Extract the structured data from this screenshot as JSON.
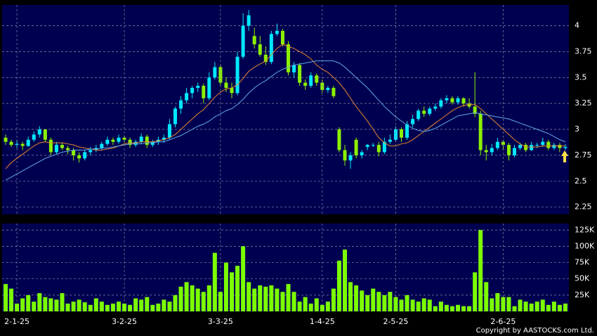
{
  "chart_data": [
    {
      "type": "candlestick",
      "ylim": [
        2.18,
        4.2
      ],
      "yticks": [
        2.25,
        2.5,
        2.75,
        3,
        3.25,
        3.5,
        3.75,
        4
      ],
      "up_color": "#00e8ff",
      "down_color": "#8cf000",
      "grid": true,
      "candles": [
        [
          2.92,
          2.95,
          2.85,
          2.88
        ],
        [
          2.88,
          2.9,
          2.83,
          2.85
        ],
        [
          2.85,
          2.9,
          2.82,
          2.86
        ],
        [
          2.86,
          2.88,
          2.8,
          2.84
        ],
        [
          2.84,
          2.93,
          2.83,
          2.9
        ],
        [
          2.9,
          2.98,
          2.88,
          2.95
        ],
        [
          2.95,
          3.03,
          2.92,
          3.0
        ],
        [
          3.0,
          3.0,
          2.88,
          2.9
        ],
        [
          2.9,
          2.92,
          2.75,
          2.78
        ],
        [
          2.78,
          2.88,
          2.76,
          2.85
        ],
        [
          2.85,
          2.87,
          2.8,
          2.82
        ],
        [
          2.82,
          2.84,
          2.76,
          2.8
        ],
        [
          2.8,
          2.82,
          2.7,
          2.75
        ],
        [
          2.75,
          2.78,
          2.68,
          2.72
        ],
        [
          2.72,
          2.8,
          2.7,
          2.78
        ],
        [
          2.78,
          2.83,
          2.75,
          2.8
        ],
        [
          2.8,
          2.85,
          2.78,
          2.82
        ],
        [
          2.82,
          2.88,
          2.8,
          2.86
        ],
        [
          2.86,
          2.93,
          2.84,
          2.9
        ],
        [
          2.9,
          2.92,
          2.85,
          2.88
        ],
        [
          2.88,
          2.95,
          2.86,
          2.92
        ],
        [
          2.92,
          2.94,
          2.87,
          2.9
        ],
        [
          2.9,
          2.92,
          2.82,
          2.85
        ],
        [
          2.85,
          2.9,
          2.83,
          2.88
        ],
        [
          2.88,
          2.96,
          2.86,
          2.93
        ],
        [
          2.93,
          2.95,
          2.82,
          2.85
        ],
        [
          2.85,
          2.9,
          2.83,
          2.88
        ],
        [
          2.88,
          2.93,
          2.85,
          2.9
        ],
        [
          2.9,
          2.95,
          2.87,
          2.92
        ],
        [
          2.92,
          3.1,
          2.9,
          3.05
        ],
        [
          3.05,
          3.22,
          3.02,
          3.2
        ],
        [
          3.2,
          3.32,
          3.15,
          3.28
        ],
        [
          3.28,
          3.4,
          3.25,
          3.35
        ],
        [
          3.35,
          3.42,
          3.3,
          3.4
        ],
        [
          3.4,
          3.45,
          3.36,
          3.42
        ],
        [
          3.42,
          3.44,
          3.25,
          3.3
        ],
        [
          3.3,
          3.55,
          3.28,
          3.5
        ],
        [
          3.5,
          3.65,
          3.48,
          3.6
        ],
        [
          3.6,
          3.62,
          3.42,
          3.45
        ],
        [
          3.45,
          3.5,
          3.36,
          3.4
        ],
        [
          3.4,
          3.45,
          3.3,
          3.35
        ],
        [
          3.35,
          3.75,
          3.33,
          3.7
        ],
        [
          3.7,
          4.12,
          3.68,
          4.0
        ],
        [
          4.0,
          4.15,
          3.95,
          4.1
        ],
        [
          3.9,
          3.98,
          3.78,
          3.82
        ],
        [
          3.82,
          3.9,
          3.7,
          3.72
        ],
        [
          3.72,
          3.8,
          3.62,
          3.65
        ],
        [
          3.65,
          3.95,
          3.63,
          3.92
        ],
        [
          3.92,
          4.02,
          3.9,
          3.95
        ],
        [
          3.95,
          3.97,
          3.8,
          3.82
        ],
        [
          3.82,
          3.85,
          3.52,
          3.55
        ],
        [
          3.55,
          3.65,
          3.5,
          3.62
        ],
        [
          3.62,
          3.64,
          3.42,
          3.45
        ],
        [
          3.45,
          3.48,
          3.38,
          3.42
        ],
        [
          3.42,
          3.55,
          3.4,
          3.52
        ],
        [
          3.52,
          3.54,
          3.42,
          3.45
        ],
        [
          3.45,
          3.48,
          3.35,
          3.38
        ],
        [
          3.38,
          3.42,
          3.35,
          3.4
        ],
        [
          3.4,
          3.42,
          3.3,
          3.32
        ],
        [
          3.0,
          3.02,
          2.78,
          2.8
        ],
        [
          2.8,
          2.85,
          2.65,
          2.7
        ],
        [
          2.7,
          2.78,
          2.62,
          2.75
        ],
        [
          2.9,
          2.92,
          2.72,
          2.75
        ],
        [
          2.75,
          2.8,
          2.72,
          2.78
        ],
        [
          2.83,
          2.86,
          2.8,
          2.85
        ],
        [
          2.85,
          2.87,
          2.83,
          2.85
        ],
        [
          2.85,
          2.88,
          2.74,
          2.78
        ],
        [
          2.78,
          2.92,
          2.76,
          2.88
        ],
        [
          2.88,
          2.95,
          2.86,
          2.9
        ],
        [
          2.9,
          3.03,
          2.88,
          3.0
        ],
        [
          3.0,
          3.02,
          2.88,
          2.92
        ],
        [
          2.92,
          3.08,
          2.9,
          3.05
        ],
        [
          3.05,
          3.14,
          3.02,
          3.1
        ],
        [
          3.1,
          3.2,
          3.08,
          3.18
        ],
        [
          3.18,
          3.22,
          3.12,
          3.15
        ],
        [
          3.15,
          3.22,
          3.13,
          3.2
        ],
        [
          3.2,
          3.25,
          3.18,
          3.22
        ],
        [
          3.22,
          3.3,
          3.2,
          3.28
        ],
        [
          3.28,
          3.33,
          3.25,
          3.3
        ],
        [
          3.3,
          3.32,
          3.24,
          3.26
        ],
        [
          3.26,
          3.32,
          3.24,
          3.3
        ],
        [
          3.3,
          3.31,
          3.22,
          3.25
        ],
        [
          3.25,
          3.3,
          3.2,
          3.22
        ],
        [
          3.22,
          3.55,
          3.12,
          3.15
        ],
        [
          3.15,
          3.18,
          2.75,
          2.8
        ],
        [
          2.8,
          2.85,
          2.7,
          2.78
        ],
        [
          2.78,
          2.86,
          2.75,
          2.82
        ],
        [
          2.82,
          2.92,
          2.8,
          2.88
        ],
        [
          2.88,
          2.9,
          2.8,
          2.85
        ],
        [
          2.85,
          2.87,
          2.7,
          2.75
        ],
        [
          2.75,
          2.85,
          2.73,
          2.82
        ],
        [
          2.82,
          2.87,
          2.8,
          2.85
        ],
        [
          2.85,
          2.87,
          2.78,
          2.8
        ],
        [
          2.8,
          2.88,
          2.79,
          2.85
        ],
        [
          2.85,
          2.87,
          2.82,
          2.85
        ],
        [
          2.85,
          2.92,
          2.83,
          2.88
        ],
        [
          2.88,
          2.9,
          2.8,
          2.82
        ],
        [
          2.82,
          2.87,
          2.8,
          2.85
        ],
        [
          2.85,
          2.87,
          2.78,
          2.82
        ],
        [
          2.82,
          2.86,
          2.8,
          2.83
        ]
      ],
      "series": [
        {
          "color": "#e8882a",
          "values": [
            2.62,
            2.68,
            2.72,
            2.76,
            2.8,
            2.84,
            2.87,
            2.88,
            2.87,
            2.87,
            2.87,
            2.86,
            2.85,
            2.83,
            2.82,
            2.81,
            2.8,
            2.8,
            2.81,
            2.82,
            2.84,
            2.86,
            2.87,
            2.87,
            2.88,
            2.88,
            2.88,
            2.89,
            2.9,
            2.92,
            2.95,
            3.0,
            3.05,
            3.1,
            3.15,
            3.19,
            3.25,
            3.31,
            3.36,
            3.39,
            3.4,
            3.43,
            3.49,
            3.56,
            3.6,
            3.63,
            3.66,
            3.72,
            3.78,
            3.82,
            3.8,
            3.78,
            3.75,
            3.72,
            3.68,
            3.62,
            3.58,
            3.55,
            3.5,
            3.45,
            3.38,
            3.3,
            3.22,
            3.15,
            3.08,
            3.0,
            2.92,
            2.87,
            2.84,
            2.84,
            2.86,
            2.87,
            2.9,
            2.94,
            2.98,
            3.02,
            3.06,
            3.1,
            3.14,
            3.18,
            3.21,
            3.23,
            3.24,
            3.24,
            3.2,
            3.15,
            3.1,
            3.05,
            3.0,
            2.95,
            2.9,
            2.86,
            2.83,
            2.83,
            2.83,
            2.84,
            2.84,
            2.84,
            2.84,
            2.84
          ]
        },
        {
          "color": "#62a8e8",
          "values": [
            2.51,
            2.54,
            2.57,
            2.6,
            2.63,
            2.66,
            2.69,
            2.72,
            2.74,
            2.76,
            2.78,
            2.79,
            2.8,
            2.8,
            2.8,
            2.81,
            2.81,
            2.82,
            2.82,
            2.83,
            2.84,
            2.85,
            2.86,
            2.86,
            2.86,
            2.87,
            2.87,
            2.88,
            2.88,
            2.9,
            2.92,
            2.94,
            2.97,
            3.0,
            3.03,
            3.05,
            3.08,
            3.12,
            3.15,
            3.18,
            3.2,
            3.24,
            3.29,
            3.35,
            3.4,
            3.44,
            3.47,
            3.51,
            3.55,
            3.58,
            3.6,
            3.62,
            3.63,
            3.64,
            3.65,
            3.66,
            3.66,
            3.66,
            3.66,
            3.64,
            3.6,
            3.55,
            3.5,
            3.45,
            3.4,
            3.34,
            3.28,
            3.22,
            3.17,
            3.12,
            3.08,
            3.04,
            3.01,
            2.99,
            2.98,
            2.99,
            3.01,
            3.04,
            3.07,
            3.1,
            3.13,
            3.14,
            3.15,
            3.16,
            3.15,
            3.14,
            3.13,
            3.12,
            3.11,
            3.1,
            3.08,
            3.06,
            3.04,
            3.02,
            3.0,
            2.98,
            2.96,
            2.93,
            2.9,
            2.88
          ]
        }
      ]
    },
    {
      "type": "bar",
      "color": "#7cff00",
      "ylim": [
        0,
        135000
      ],
      "yticks": [
        {
          "value": 25000,
          "label": "25K"
        },
        {
          "value": 50000,
          "label": "50K"
        },
        {
          "value": 75000,
          "label": "75K"
        },
        {
          "value": 100000,
          "label": "100K"
        },
        {
          "value": 125000,
          "label": "125K"
        }
      ],
      "grid": true,
      "categories": [
        null,
        null,
        "2-1-25",
        null,
        null,
        null,
        null,
        null,
        null,
        null,
        null,
        null,
        null,
        null,
        null,
        null,
        null,
        null,
        null,
        null,
        null,
        "3-2-25",
        null,
        null,
        null,
        null,
        null,
        null,
        null,
        null,
        null,
        null,
        null,
        null,
        null,
        null,
        null,
        null,
        "3-3-25",
        null,
        null,
        null,
        null,
        null,
        null,
        null,
        null,
        null,
        null,
        null,
        null,
        null,
        null,
        null,
        null,
        null,
        "1-4-25",
        null,
        null,
        null,
        null,
        null,
        null,
        null,
        null,
        null,
        null,
        null,
        null,
        "2-5-25",
        null,
        null,
        null,
        null,
        null,
        null,
        null,
        null,
        null,
        null,
        null,
        null,
        null,
        null,
        null,
        null,
        null,
        null,
        "2-6-25",
        null,
        null,
        null,
        null,
        null,
        null,
        null,
        null,
        null,
        null,
        null
      ],
      "values": [
        42000,
        35000,
        12000,
        20000,
        25000,
        15000,
        28000,
        22000,
        20000,
        18000,
        28000,
        12000,
        15000,
        18000,
        14000,
        10000,
        20000,
        15000,
        10000,
        12000,
        15000,
        12000,
        10000,
        20000,
        18000,
        22000,
        10000,
        12000,
        18000,
        15000,
        25000,
        38000,
        45000,
        40000,
        35000,
        30000,
        40000,
        90000,
        30000,
        75000,
        60000,
        70000,
        100000,
        45000,
        35000,
        40000,
        38000,
        40000,
        35000,
        30000,
        42000,
        30000,
        15000,
        22000,
        12000,
        20000,
        10000,
        15000,
        35000,
        78000,
        95000,
        45000,
        40000,
        32000,
        25000,
        35000,
        30000,
        25000,
        30000,
        22000,
        18000,
        25000,
        18000,
        15000,
        20000,
        18000,
        8000,
        15000,
        10000,
        8000,
        10000,
        8000,
        8000,
        60000,
        125000,
        45000,
        20000,
        28000,
        22000,
        22000,
        8000,
        18000,
        15000,
        12000,
        15000,
        18000,
        10000,
        15000,
        10000,
        12000
      ]
    }
  ],
  "footer": "Copyright by AASTOCKS.com Ltd."
}
